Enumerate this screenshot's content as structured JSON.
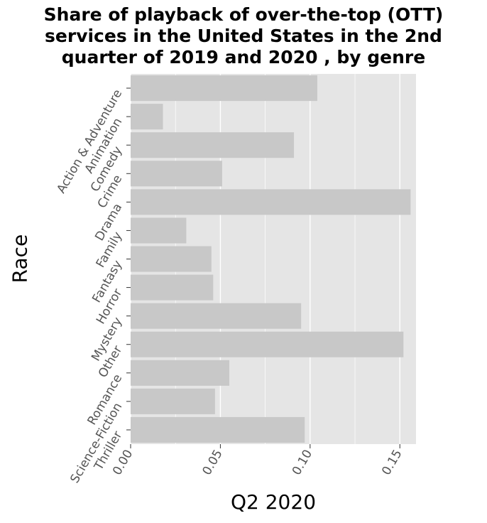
{
  "chart_data": {
    "type": "bar",
    "orientation": "horizontal",
    "title_lines": [
      "Share of playback of over-the-top (OTT)",
      "services in the United States in the 2nd",
      "quarter of 2019 and 2020 , by genre"
    ],
    "xlabel": "Q2 2020",
    "ylabel": "Race",
    "categories": [
      "Action & Adventure",
      "Animation",
      "Comedy",
      "Crime",
      "Drama",
      "Family",
      "Fantasy",
      "Horror",
      "Mystery",
      "Other",
      "Romance",
      "Science-Fiction",
      "Thriller"
    ],
    "values": [
      0.104,
      0.018,
      0.091,
      0.051,
      0.156,
      0.031,
      0.045,
      0.046,
      0.095,
      0.152,
      0.055,
      0.047,
      0.097
    ],
    "xlim": [
      0,
      0.159
    ],
    "xticks": [
      0.0,
      0.05,
      0.1,
      0.15
    ],
    "xtick_labels": [
      "0.00",
      "0.05",
      "0.10",
      "0.15"
    ],
    "grid": true,
    "bar_color": "#c8c8c8",
    "background_color": "#e5e5e5",
    "grid_color": "#ffffff"
  }
}
